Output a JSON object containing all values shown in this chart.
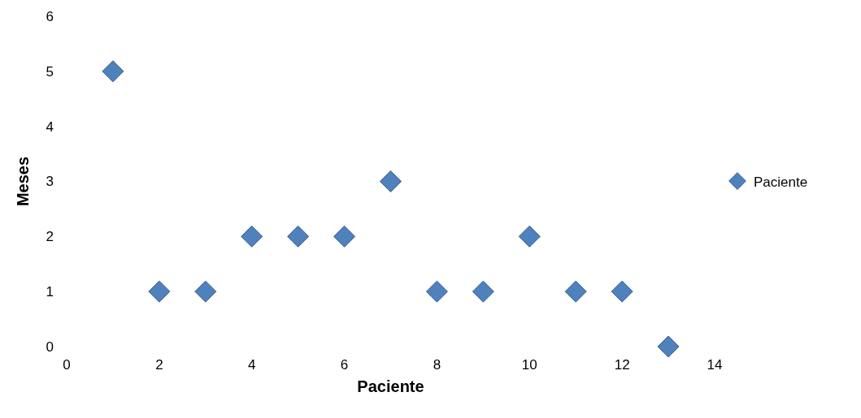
{
  "chart_data": {
    "type": "scatter",
    "xlabel": "Paciente",
    "ylabel": "Meses",
    "x": [
      1,
      2,
      3,
      4,
      5,
      6,
      7,
      8,
      9,
      10,
      11,
      12,
      13
    ],
    "series": [
      {
        "name": "Paciente",
        "color": "#4f81bd",
        "values": [
          5,
          1,
          1,
          2,
          2,
          2,
          3,
          1,
          1,
          2,
          1,
          1,
          0
        ]
      }
    ],
    "xlim": [
      0,
      14
    ],
    "xticks": [
      0,
      2,
      4,
      6,
      8,
      10,
      12,
      14
    ],
    "ylim": [
      0,
      6
    ],
    "yticks": [
      0,
      1,
      2,
      3,
      4,
      5,
      6
    ],
    "marker": "diamond",
    "legend": "right"
  }
}
